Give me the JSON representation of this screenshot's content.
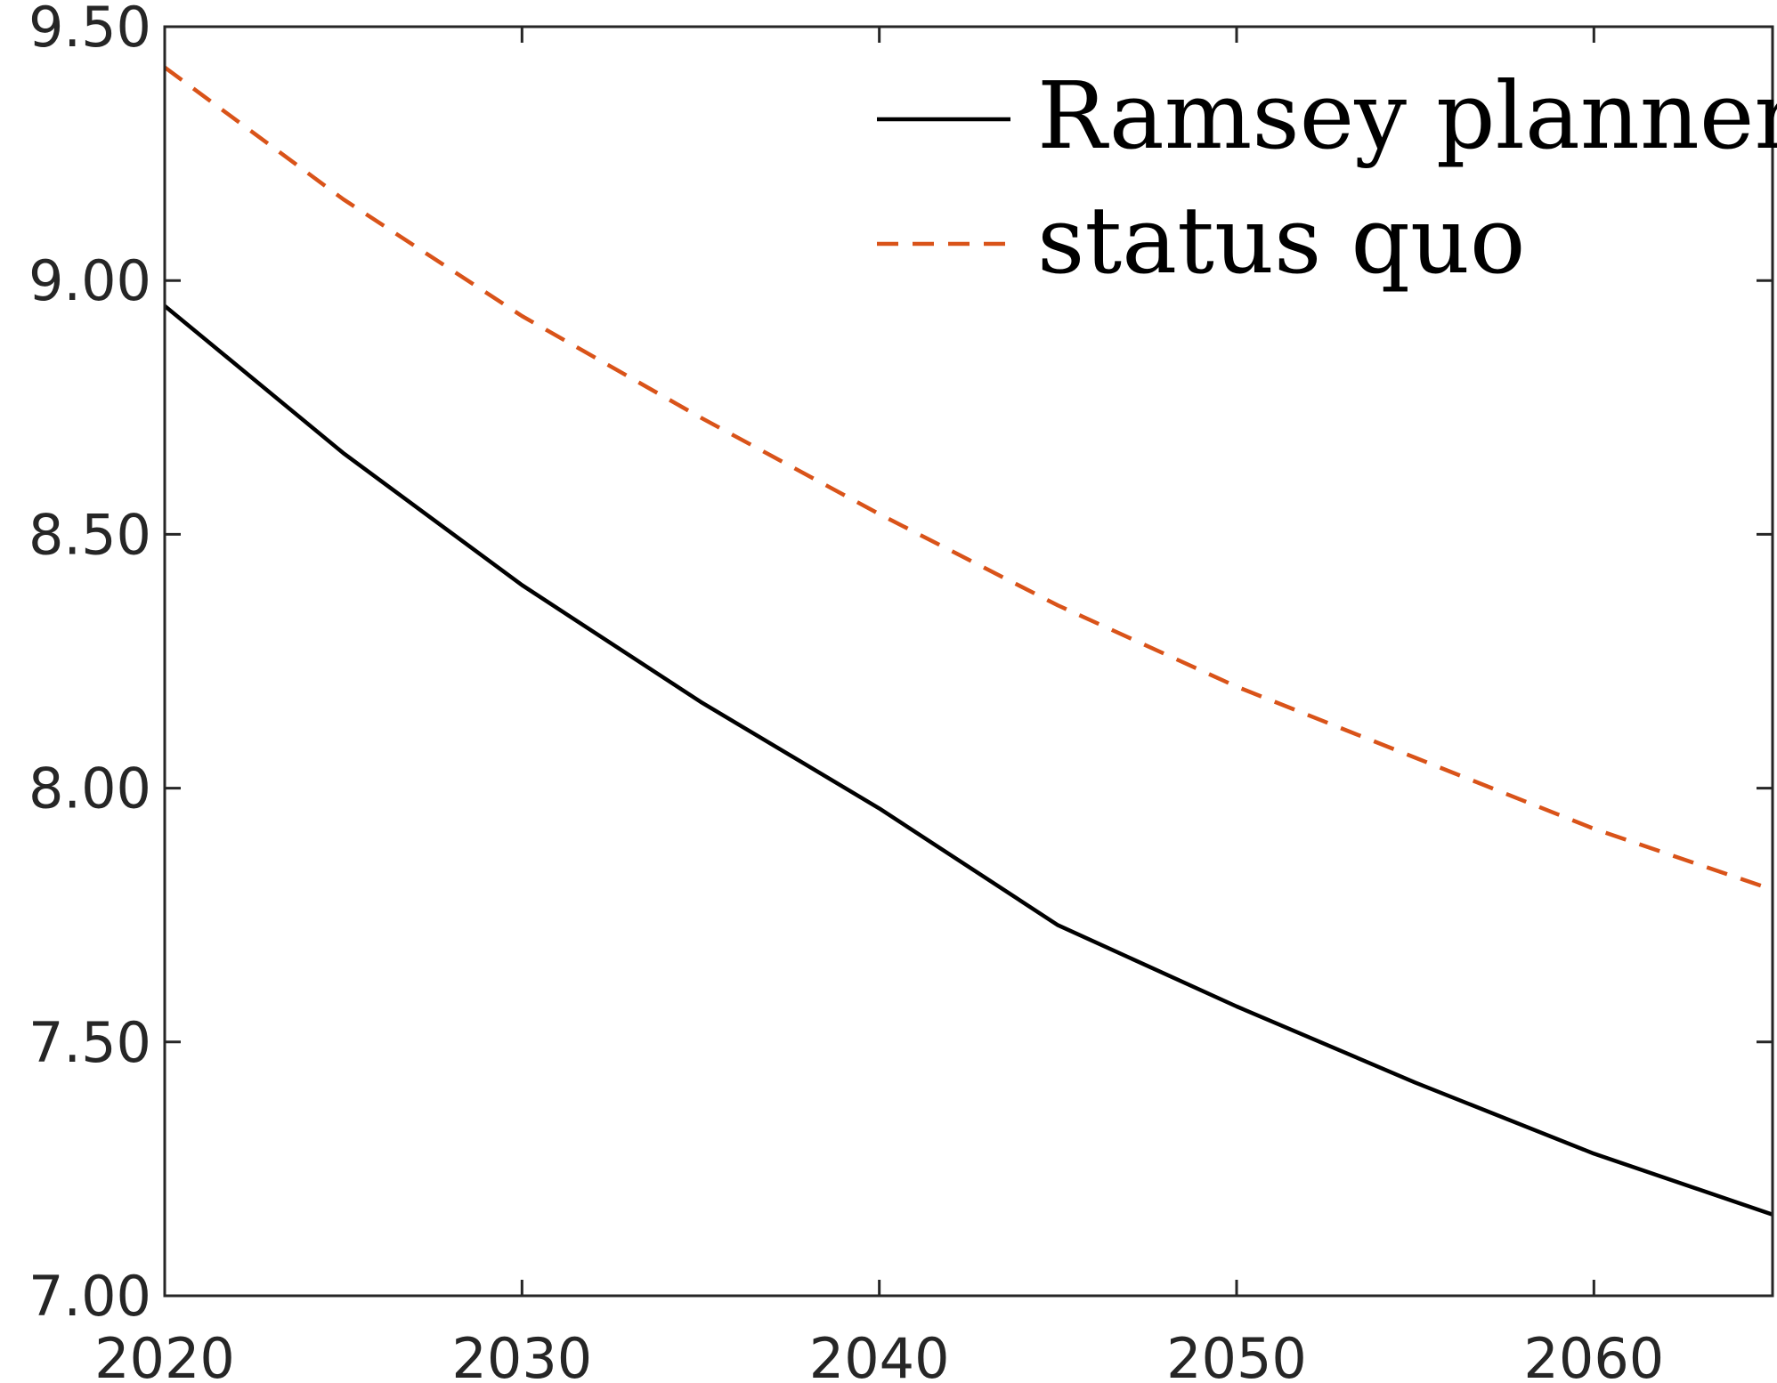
{
  "chart_data": {
    "type": "line",
    "title": "",
    "xlabel": "",
    "ylabel": "",
    "xlim": [
      2020,
      2065
    ],
    "ylim": [
      7.0,
      9.5
    ],
    "xticks": [
      "2020",
      "2030",
      "2040",
      "2050",
      "2060"
    ],
    "yticks": [
      "7.00",
      "7.50",
      "8.00",
      "8.50",
      "9.00",
      "9.50"
    ],
    "grid": false,
    "legend_position": "top-right",
    "x": [
      2020,
      2025,
      2030,
      2035,
      2040,
      2045,
      2050,
      2055,
      2060,
      2065
    ],
    "series": [
      {
        "name": "Ramsey planner",
        "style": "solid",
        "color": "#000000",
        "values": [
          8.95,
          8.66,
          8.4,
          8.17,
          7.96,
          7.73,
          7.57,
          7.42,
          7.28,
          7.16
        ]
      },
      {
        "name": "status quo",
        "style": "dashed",
        "color": "#D95319",
        "values": [
          9.42,
          9.16,
          8.93,
          8.73,
          8.54,
          8.36,
          8.2,
          8.06,
          7.92,
          7.8
        ]
      }
    ]
  }
}
